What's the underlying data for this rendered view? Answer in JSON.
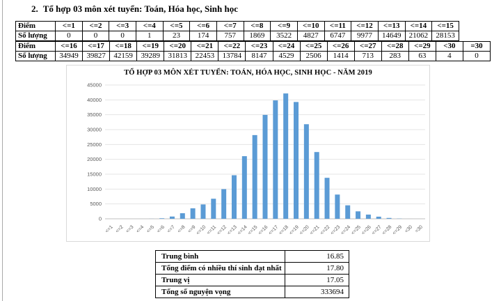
{
  "heading": {
    "number": "2.",
    "text": "Tổ hợp 03 môn xét tuyển: Toán, Hóa học, Sinh học"
  },
  "score_table_1": {
    "row_headers": [
      "Điểm",
      "Số lượng"
    ],
    "columns": [
      "<=1",
      "<=2",
      "<=3",
      "<=4",
      "<=5",
      "<=6",
      "<=7",
      "<=8",
      "<=9",
      "<=10",
      "<=11",
      "<=12",
      "<=13",
      "<=14",
      "<=15"
    ],
    "values": [
      0,
      0,
      0,
      1,
      23,
      174,
      757,
      1869,
      3522,
      4827,
      6747,
      9977,
      14649,
      21062,
      28153
    ]
  },
  "score_table_2": {
    "row_headers": [
      "Điểm",
      "Số lượng"
    ],
    "columns": [
      "<=16",
      "<=17",
      "<=18",
      "<=19",
      "<=20",
      "<=21",
      "<=22",
      "<=23",
      "<=24",
      "<=25",
      "<=26",
      "<=27",
      "<=28",
      "<=29",
      "<30",
      "=30"
    ],
    "values": [
      34949,
      39827,
      42159,
      39289,
      31813,
      22453,
      13784,
      8147,
      4529,
      2506,
      1414,
      713,
      283,
      63,
      4,
      0
    ]
  },
  "chart_data": {
    "type": "bar",
    "title": "TỔ HỢP 03 MÔN XÉT TUYỂN: TOÁN, HÓA HỌC, SINH HỌC - NĂM 2019",
    "categories": [
      "<=1",
      "<=2",
      "<=3",
      "<=4",
      "<=5",
      "<=6",
      "<=7",
      "<=8",
      "<=9",
      "<=10",
      "<=11",
      "<=12",
      "<=13",
      "<=14",
      "<=15",
      "<=16",
      "<=17",
      "<=18",
      "<=19",
      "<=20",
      "<=21",
      "<=22",
      "<=23",
      "<=24",
      "<=25",
      "<=26",
      "<=27",
      "<=28",
      "<=29",
      "<30",
      "=30"
    ],
    "values": [
      0,
      0,
      0,
      1,
      23,
      174,
      757,
      1869,
      3522,
      4827,
      6747,
      9977,
      14649,
      21062,
      28153,
      34949,
      39827,
      42159,
      39289,
      31813,
      22453,
      13784,
      8147,
      4529,
      2506,
      1414,
      713,
      283,
      63,
      4,
      0
    ],
    "xlabel": "",
    "ylabel": "",
    "ylim": [
      0,
      45000
    ],
    "ytick_step": 5000,
    "grid": true,
    "legend": "none",
    "bar_color": "#5b9bd5",
    "gridline_color": "#e4e4e4",
    "axis_line_color": "#bfbfbf",
    "tick_label_color": "#595959"
  },
  "summary_table": {
    "rows": [
      {
        "label": "Trung bình",
        "value": "16.85"
      },
      {
        "label": "Tổng điểm có nhiều thí sinh đạt nhất",
        "value": "17.80"
      },
      {
        "label": "Trung vị",
        "value": "17.05"
      },
      {
        "label": "Tổng số nguyện vọng",
        "value": "333694"
      }
    ]
  }
}
